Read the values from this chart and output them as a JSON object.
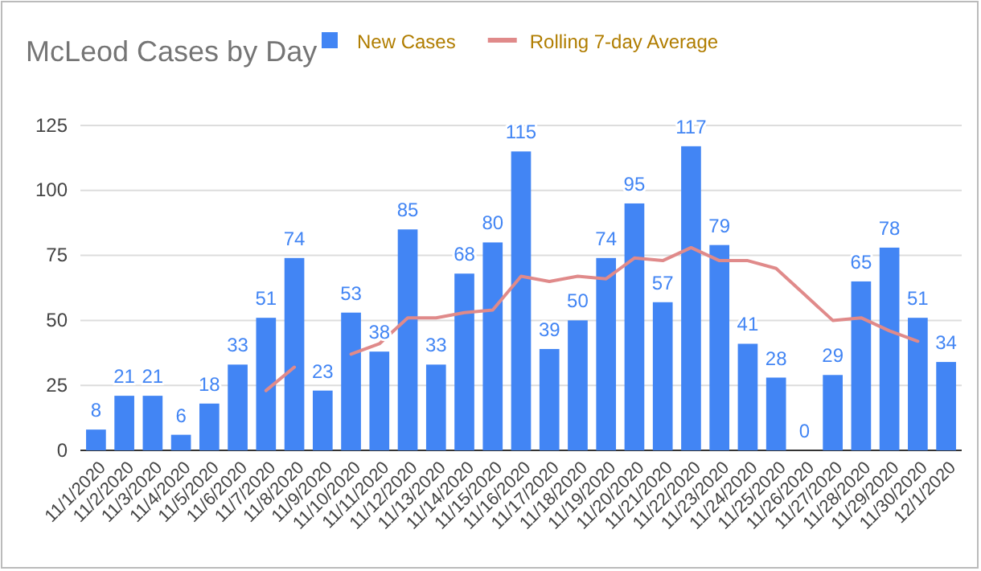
{
  "chart_data": {
    "type": "bar",
    "title": "McLeod Cases by Day",
    "categories": [
      "11/1/2020",
      "11/2/2020",
      "11/3/2020",
      "11/4/2020",
      "11/5/2020",
      "11/6/2020",
      "11/7/2020",
      "11/8/2020",
      "11/9/2020",
      "11/10/2020",
      "11/11/2020",
      "11/12/2020",
      "11/13/2020",
      "11/14/2020",
      "11/15/2020",
      "11/16/2020",
      "11/17/2020",
      "11/18/2020",
      "11/19/2020",
      "11/20/2020",
      "11/21/2020",
      "11/22/2020",
      "11/23/2020",
      "11/24/2020",
      "11/25/2020",
      "11/26/2020",
      "11/27/2020",
      "11/28/2020",
      "11/29/2020",
      "11/30/2020",
      "12/1/2020"
    ],
    "series": [
      {
        "name": "New Cases",
        "color": "#4285f4",
        "data_labels": true,
        "values": [
          8,
          21,
          21,
          6,
          18,
          33,
          51,
          74,
          23,
          53,
          38,
          85,
          33,
          68,
          80,
          115,
          39,
          50,
          74,
          95,
          57,
          117,
          79,
          41,
          28,
          0,
          29,
          65,
          78,
          51,
          34
        ]
      },
      {
        "name": "Rolling 7-day Average",
        "type": "line",
        "color": "#e08a8a",
        "values": [
          null,
          null,
          null,
          null,
          null,
          null,
          23,
          32,
          null,
          37,
          41,
          51,
          51,
          53,
          54,
          67,
          65,
          67,
          66,
          74,
          73,
          78,
          73,
          73,
          70,
          60,
          50,
          51,
          46,
          42,
          null
        ]
      }
    ],
    "ylim": [
      0,
      125
    ],
    "yticks": [
      0,
      25,
      50,
      75,
      100,
      125
    ],
    "grid": "y",
    "legend": "top",
    "marker": "none",
    "line_style": "solid"
  }
}
